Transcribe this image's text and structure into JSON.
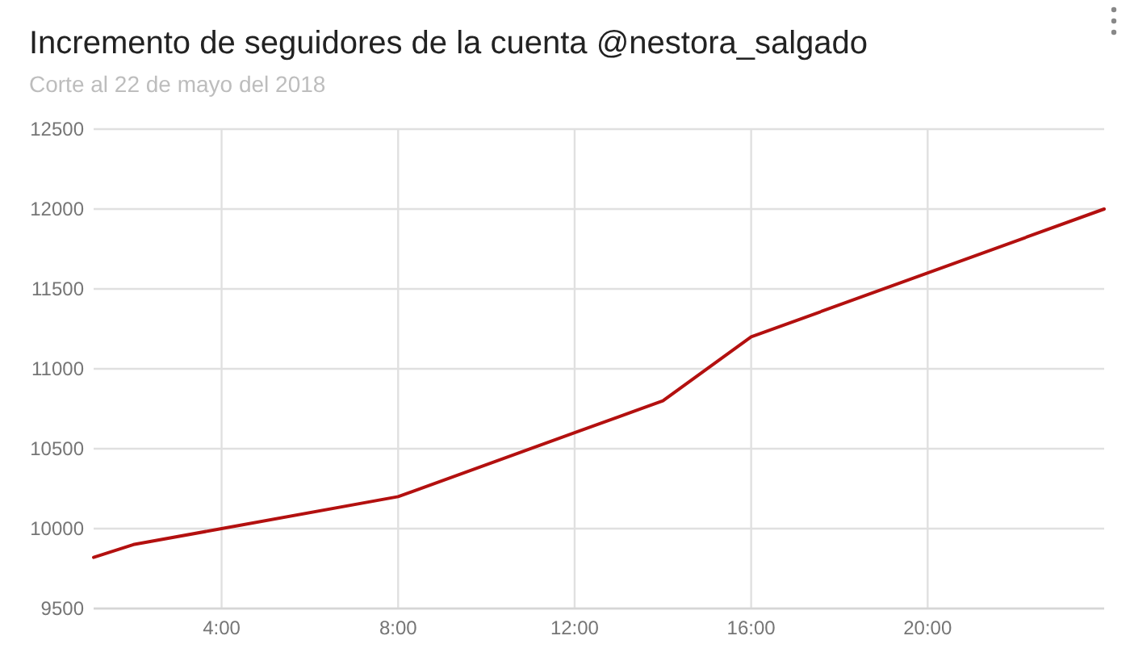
{
  "chart_data": {
    "type": "line",
    "title": "Incremento de seguidores de la cuenta @nestora_salgado",
    "subtitle": "Corte al 22 de mayo del 2018",
    "x": [
      1.1,
      2,
      4,
      8,
      12,
      14,
      16,
      24
    ],
    "series": [
      {
        "color": "#b3100f",
        "values": [
          9820,
          9900,
          10000,
          10200,
          10600,
          10800,
          11200,
          12000
        ]
      }
    ],
    "xlim": [
      1.1,
      24
    ],
    "xticks": [
      {
        "value": 4,
        "label": "4:00"
      },
      {
        "value": 8,
        "label": "8:00"
      },
      {
        "value": 12,
        "label": "12:00"
      },
      {
        "value": 16,
        "label": "16:00"
      },
      {
        "value": 20,
        "label": "20:00"
      }
    ],
    "ylim": [
      9500,
      12500
    ],
    "yticks": [
      9500,
      10000,
      10500,
      11000,
      11500,
      12000,
      12500
    ],
    "grid": true,
    "line_style": "solid"
  }
}
